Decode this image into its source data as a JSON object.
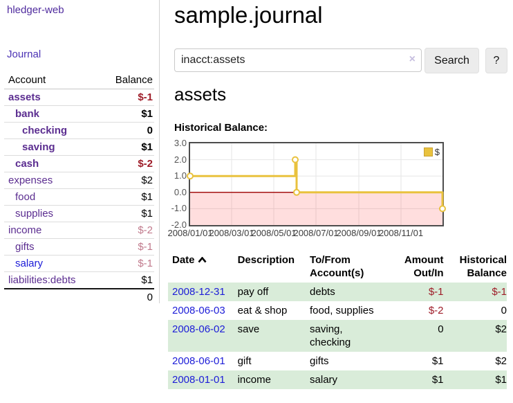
{
  "sidebar": {
    "brand": "hledger-web",
    "journal_link": "Journal",
    "accounts_table": {
      "headers": {
        "account": "Account",
        "balance": "Balance"
      },
      "rows": [
        {
          "name": "assets",
          "indent": 1,
          "bold": true,
          "balance": "$-1",
          "balance_style": "negative",
          "link_color": "purple"
        },
        {
          "name": "bank",
          "indent": 2,
          "bold": true,
          "balance": "$1",
          "balance_style": "normal",
          "link_color": "purple"
        },
        {
          "name": "checking",
          "indent": 3,
          "bold": true,
          "balance": "0",
          "balance_style": "normal",
          "link_color": "purple"
        },
        {
          "name": "saving",
          "indent": 3,
          "bold": true,
          "balance": "$1",
          "balance_style": "normal",
          "link_color": "purple"
        },
        {
          "name": "cash",
          "indent": 2,
          "bold": true,
          "balance": "$-2",
          "balance_style": "negative",
          "link_color": "purple"
        },
        {
          "name": "expenses",
          "indent": 1,
          "bold": false,
          "balance": "$2",
          "balance_style": "normal",
          "link_color": "purple"
        },
        {
          "name": "food",
          "indent": 2,
          "bold": false,
          "balance": "$1",
          "balance_style": "normal",
          "link_color": "purple"
        },
        {
          "name": "supplies",
          "indent": 2,
          "bold": false,
          "balance": "$1",
          "balance_style": "normal",
          "link_color": "purple"
        },
        {
          "name": "income",
          "indent": 1,
          "bold": false,
          "balance": "$-2",
          "balance_style": "negative-muted",
          "link_color": "purple"
        },
        {
          "name": "gifts",
          "indent": 2,
          "bold": false,
          "balance": "$-1",
          "balance_style": "negative-muted",
          "link_color": "purple"
        },
        {
          "name": "salary",
          "indent": 2,
          "bold": false,
          "balance": "$-1",
          "balance_style": "negative-muted",
          "link_color": "blue"
        },
        {
          "name": "liabilities:debts",
          "indent": 1,
          "bold": false,
          "balance": "$1",
          "balance_style": "normal",
          "link_color": "purple"
        }
      ],
      "total": "0"
    }
  },
  "header": {
    "title": "sample.journal"
  },
  "search": {
    "query": "inacct:assets",
    "clear_icon": "×",
    "search_button": "Search",
    "help_button": "?"
  },
  "account_page": {
    "heading": "assets",
    "chart_title": "Historical Balance:"
  },
  "chart_data": {
    "type": "line",
    "step": true,
    "title": "Historical Balance",
    "x_range": [
      "2008-01-01",
      "2008-12-31"
    ],
    "ylim": [
      -2,
      3
    ],
    "series": [
      {
        "name": "$",
        "color": "#e9c23e",
        "points": [
          {
            "d": "2008-01-01",
            "v": 1
          },
          {
            "d": "2008-06-01",
            "v": 2
          },
          {
            "d": "2008-06-03",
            "v": 0
          },
          {
            "d": "2008-12-31",
            "v": -1
          }
        ]
      }
    ],
    "yticks": [
      {
        "v": 3,
        "label": "3.0"
      },
      {
        "v": 2,
        "label": "2.0"
      },
      {
        "v": 1,
        "label": "1.0"
      },
      {
        "v": 0,
        "label": "0.0"
      },
      {
        "v": -1,
        "label": "-1.0"
      },
      {
        "v": -2,
        "label": "-2.0"
      }
    ],
    "xticks": [
      {
        "d": "2008-01-01",
        "label": "2008/01/01"
      },
      {
        "d": "2008-03-01",
        "label": "2008/03/01"
      },
      {
        "d": "2008-05-01",
        "label": "2008/05/01"
      },
      {
        "d": "2008-07-01",
        "label": "2008/07/01"
      },
      {
        "d": "2008-09-01",
        "label": "2008/09/01"
      },
      {
        "d": "2008-11-01",
        "label": "2008/11/01"
      }
    ],
    "legend": {
      "label": "$",
      "position": "top-right"
    },
    "grid": true,
    "grid_color": "#e6e6e6",
    "zero_line_color": "#a31212",
    "negative_region_fill": "rgba(255,0,0,0.13)"
  },
  "register": {
    "headers": {
      "date": "Date",
      "description": "Description",
      "accounts": "To/From Account(s)",
      "amount": "Amount Out/In",
      "historical": "Historical Balance"
    },
    "sort": {
      "column": "date",
      "direction": "ascending"
    },
    "rows": [
      {
        "date": "2008-12-31",
        "description": "pay off",
        "accounts": "debts",
        "amount": "$-1",
        "amount_negative": true,
        "historical": "$-1",
        "historical_negative": true,
        "striped": true
      },
      {
        "date": "2008-06-03",
        "description": "eat & shop",
        "accounts": "food, supplies",
        "amount": "$-2",
        "amount_negative": true,
        "historical": "0",
        "historical_negative": false,
        "striped": false
      },
      {
        "date": "2008-06-02",
        "description": "save",
        "accounts": "saving, checking",
        "amount": "0",
        "amount_negative": false,
        "historical": "$2",
        "historical_negative": false,
        "striped": true
      },
      {
        "date": "2008-06-01",
        "description": "gift",
        "accounts": "gifts",
        "amount": "$1",
        "amount_negative": false,
        "historical": "$2",
        "historical_negative": false,
        "striped": false
      },
      {
        "date": "2008-01-01",
        "description": "income",
        "accounts": "salary",
        "amount": "$1",
        "amount_negative": false,
        "historical": "$1",
        "historical_negative": false,
        "striped": true
      }
    ]
  },
  "colors": {
    "accent_purple": "#5b2d90",
    "link_blue": "#1c1cd8",
    "negative_red": "#9e1c28",
    "negative_muted": "#c17a8c",
    "stripe_green": "#d9ecd9",
    "series_gold": "#e9c23e"
  }
}
